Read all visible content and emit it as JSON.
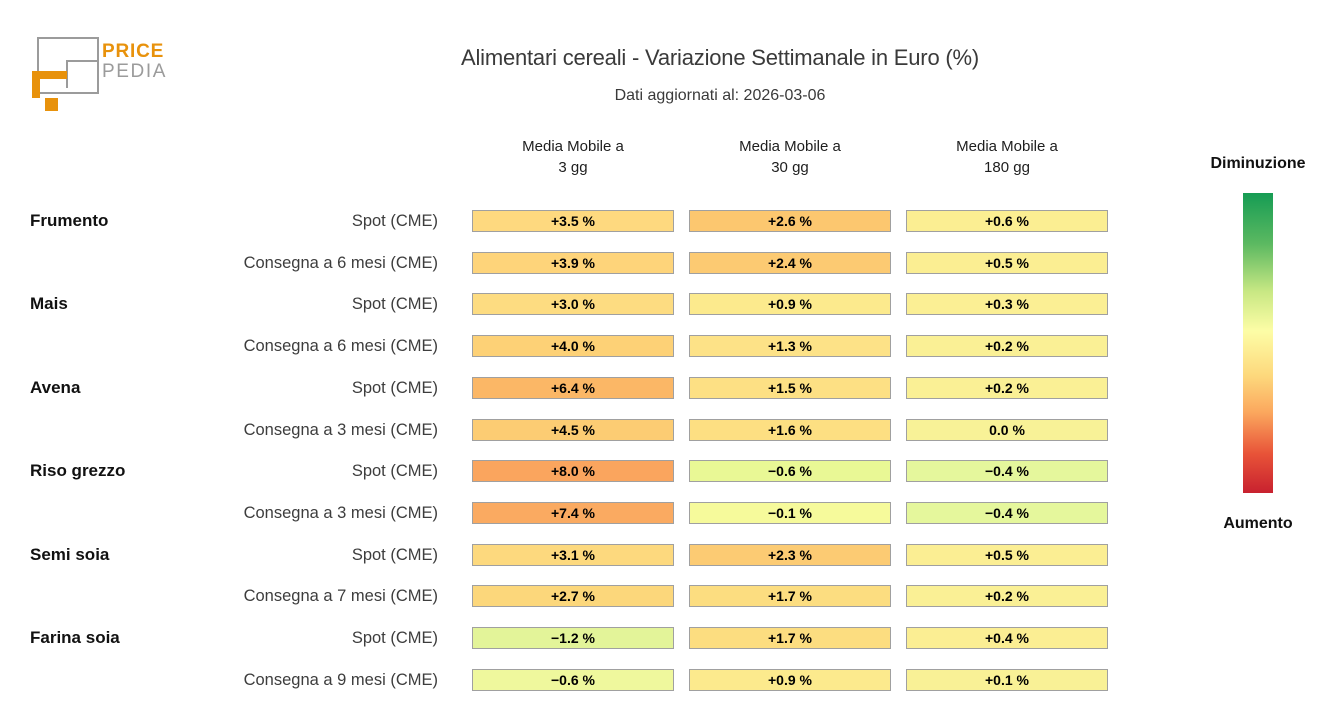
{
  "logo": {
    "line1": "PRICE",
    "line2": "PEDIA",
    "accent_color": "#e8920c",
    "gray_color": "#9b9b9b"
  },
  "header": {
    "title": "Alimentari cereali - Variazione Settimanale in Euro (%)",
    "subtitle": "Dati aggiornati al: 2026-03-06"
  },
  "chart_data": {
    "type": "heatmap",
    "title": "Alimentari cereali - Variazione Settimanale in Euro (%)",
    "subtitle": "Dati aggiornati al: 2026-03-06",
    "unit": "%",
    "columns": [
      {
        "line1": "Media Mobile a",
        "line2": "3 gg"
      },
      {
        "line1": "Media Mobile a",
        "line2": "30 gg"
      },
      {
        "line1": "Media Mobile a",
        "line2": "180 gg"
      }
    ],
    "groups": [
      {
        "label": "Frumento",
        "row_index": 0
      },
      {
        "label": "Mais",
        "row_index": 2
      },
      {
        "label": "Avena",
        "row_index": 4
      },
      {
        "label": "Riso grezzo",
        "row_index": 6
      },
      {
        "label": "Semi soia",
        "row_index": 8
      },
      {
        "label": "Farina soia",
        "row_index": 10
      }
    ],
    "rows": [
      {
        "group": "Frumento",
        "label": "Spot (CME)",
        "values": [
          3.5,
          2.6,
          0.6
        ],
        "cells": [
          {
            "text": "+3.5 %",
            "color": "#fed97f"
          },
          {
            "text": "+2.6 %",
            "color": "#fcc76f"
          },
          {
            "text": "+0.6 %",
            "color": "#fbee92"
          }
        ]
      },
      {
        "group": "Frumento",
        "label": "Consegna a 6 mesi (CME)",
        "values": [
          3.9,
          2.4,
          0.5
        ],
        "cells": [
          {
            "text": "+3.9 %",
            "color": "#fed47a"
          },
          {
            "text": "+2.4 %",
            "color": "#fcca72"
          },
          {
            "text": "+0.5 %",
            "color": "#fbee92"
          }
        ]
      },
      {
        "group": "Mais",
        "label": "Spot (CME)",
        "values": [
          3.0,
          0.9,
          0.3
        ],
        "cells": [
          {
            "text": "+3.0 %",
            "color": "#fddc81"
          },
          {
            "text": "+0.9 %",
            "color": "#fcea8d"
          },
          {
            "text": "+0.3 %",
            "color": "#fbef94"
          }
        ]
      },
      {
        "group": "Mais",
        "label": "Consegna a 6 mesi (CME)",
        "values": [
          4.0,
          1.3,
          0.2
        ],
        "cells": [
          {
            "text": "+4.0 %",
            "color": "#fdd176"
          },
          {
            "text": "+1.3 %",
            "color": "#fde287"
          },
          {
            "text": "+0.2 %",
            "color": "#faf095"
          }
        ]
      },
      {
        "group": "Avena",
        "label": "Spot (CME)",
        "values": [
          6.4,
          1.5,
          0.2
        ],
        "cells": [
          {
            "text": "+6.4 %",
            "color": "#fbb766"
          },
          {
            "text": "+1.5 %",
            "color": "#fde084"
          },
          {
            "text": "+0.2 %",
            "color": "#faf095"
          }
        ]
      },
      {
        "group": "Avena",
        "label": "Consegna a 3 mesi (CME)",
        "values": [
          4.5,
          1.6,
          0.0
        ],
        "cells": [
          {
            "text": "+4.5 %",
            "color": "#fccc73"
          },
          {
            "text": "+1.6 %",
            "color": "#fddf82"
          },
          {
            "text": "0.0 %",
            "color": "#f8f297"
          }
        ]
      },
      {
        "group": "Riso grezzo",
        "label": "Spot (CME)",
        "values": [
          8.0,
          -0.6,
          -0.4
        ],
        "cells": [
          {
            "text": "+8.0 %",
            "color": "#faa55e"
          },
          {
            "text": "−0.6 %",
            "color": "#e9f895"
          },
          {
            "text": "−0.4 %",
            "color": "#e5f79c"
          }
        ]
      },
      {
        "group": "Riso grezzo",
        "label": "Consegna a 3 mesi (CME)",
        "values": [
          7.4,
          -0.1,
          -0.4
        ],
        "cells": [
          {
            "text": "+7.4 %",
            "color": "#faaa61"
          },
          {
            "text": "−0.1 %",
            "color": "#f6fa9b"
          },
          {
            "text": "−0.4 %",
            "color": "#e5f79c"
          }
        ]
      },
      {
        "group": "Semi soia",
        "label": "Spot (CME)",
        "values": [
          3.1,
          2.3,
          0.5
        ],
        "cells": [
          {
            "text": "+3.1 %",
            "color": "#fdd97e"
          },
          {
            "text": "+2.3 %",
            "color": "#fccb73"
          },
          {
            "text": "+0.5 %",
            "color": "#fbee93"
          }
        ]
      },
      {
        "group": "Semi soia",
        "label": "Consegna a 7 mesi (CME)",
        "values": [
          2.7,
          1.7,
          0.2
        ],
        "cells": [
          {
            "text": "+2.7 %",
            "color": "#fcd77b"
          },
          {
            "text": "+1.7 %",
            "color": "#fcdd80"
          },
          {
            "text": "+0.2 %",
            "color": "#faf095"
          }
        ]
      },
      {
        "group": "Farina soia",
        "label": "Spot (CME)",
        "values": [
          -1.2,
          1.7,
          0.4
        ],
        "cells": [
          {
            "text": "−1.2 %",
            "color": "#e3f499"
          },
          {
            "text": "+1.7 %",
            "color": "#fcdd80"
          },
          {
            "text": "+0.4 %",
            "color": "#fbee93"
          }
        ]
      },
      {
        "group": "Farina soia",
        "label": "Consegna a 9 mesi (CME)",
        "values": [
          -0.6,
          0.9,
          0.1
        ],
        "cells": [
          {
            "text": "−0.6 %",
            "color": "#eff89d"
          },
          {
            "text": "+0.9 %",
            "color": "#fcea8d"
          },
          {
            "text": "+0.1 %",
            "color": "#f9f196"
          }
        ]
      }
    ],
    "legend": {
      "top_label": "Diminuzione",
      "bottom_label": "Aumento",
      "gradient": [
        {
          "color": "#169c54",
          "pos": 0
        },
        {
          "color": "#5cb961",
          "pos": 17
        },
        {
          "color": "#c9e884",
          "pos": 33
        },
        {
          "color": "#fdfda6",
          "pos": 46
        },
        {
          "color": "#fdd87c",
          "pos": 61
        },
        {
          "color": "#fba85e",
          "pos": 73
        },
        {
          "color": "#e85338",
          "pos": 87
        },
        {
          "color": "#c8212f",
          "pos": 100
        }
      ]
    },
    "layout": {
      "grid": false,
      "legend_position": "right"
    }
  }
}
